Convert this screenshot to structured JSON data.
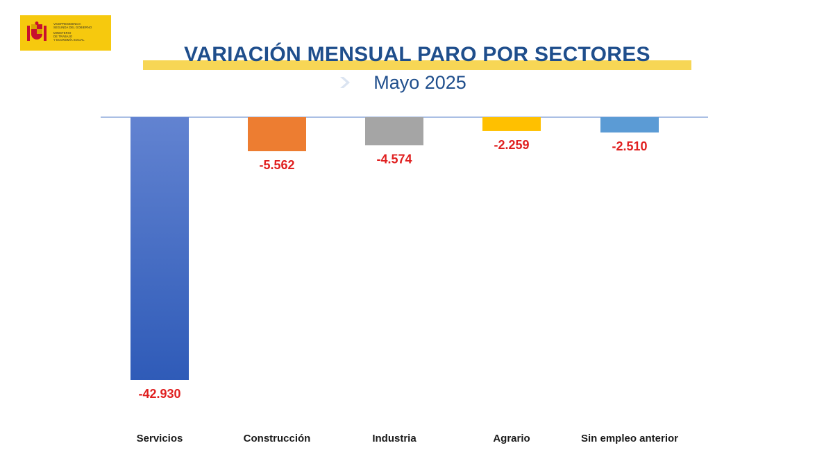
{
  "logo": {
    "line1": "VICEPRESIDENCIA",
    "line2": "SEGUNDA DEL GOBIERNO",
    "line3": "MINISTERIO",
    "line4": "DE TRABAJO",
    "line5": "Y ECONOMÍA SOCIAL"
  },
  "header": {
    "title": "VARIACIÓN MENSUAL PARO POR SECTORES",
    "subtitle": "Mayo 2025"
  },
  "colors": {
    "title": "#1f4e8c",
    "band": "#f7d655",
    "value_label": "#e02020",
    "axis": "#8eaadb"
  },
  "chart_data": {
    "type": "bar",
    "categories": [
      "Servicios",
      "Construcción",
      "Industria",
      "Agrario",
      "Sin empleo anterior"
    ],
    "values": [
      -42930,
      -5562,
      -4574,
      -2259,
      -2510
    ],
    "value_labels": [
      "-42.930",
      "-5.562",
      "-4.574",
      "-2.259",
      "-2.510"
    ],
    "bar_colors": [
      "#3f6ccb",
      "#ed7d31",
      "#a5a5a5",
      "#ffc000",
      "#5b9bd5"
    ],
    "ylim": [
      -45000,
      0
    ],
    "title": "VARIACIÓN MENSUAL PARO POR SECTORES",
    "xlabel": "",
    "ylabel": ""
  }
}
